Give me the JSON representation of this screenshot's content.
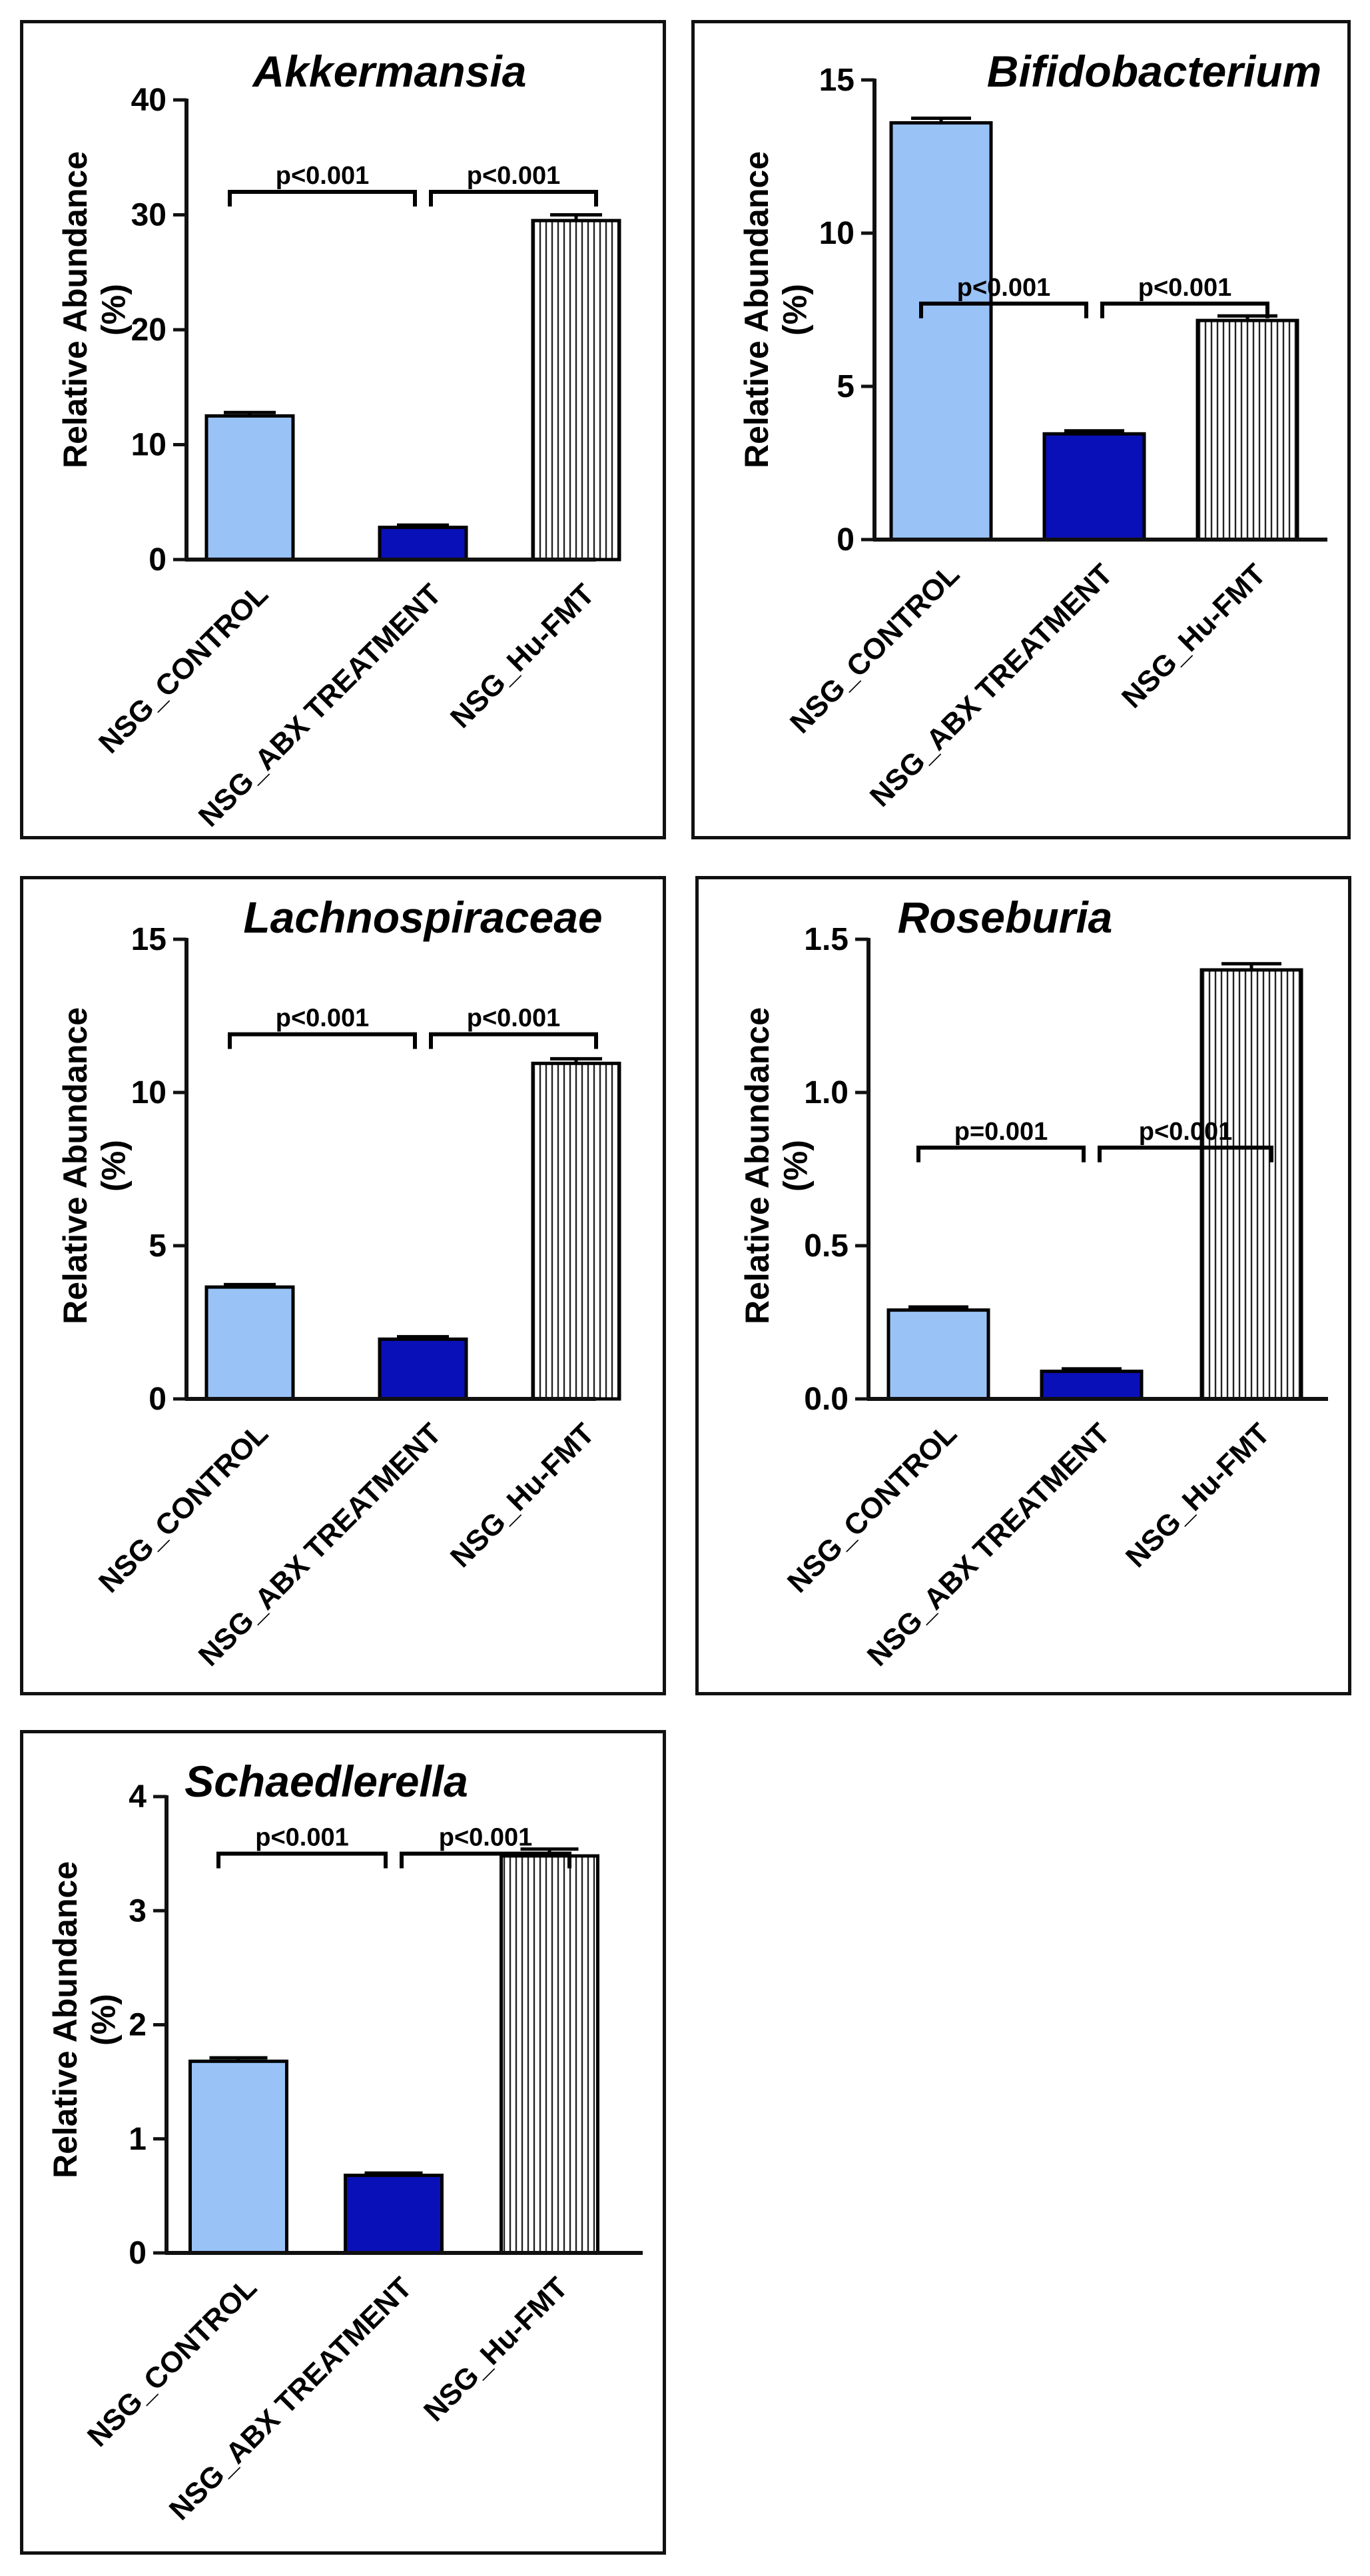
{
  "colors": {
    "control": "#99C2F7",
    "abx": "#0A10B8",
    "hufmt_bg": "#ffffff",
    "hufmt_stripe": "#222222",
    "axis": "#111111"
  },
  "chart_data": [
    {
      "type": "bar",
      "title": "Akkermansia",
      "ylabel": "Relative Abundance (%)",
      "ylabel_lines": [
        "Relative Abundance",
        "(%)"
      ],
      "categories": [
        "NSG_CONTROL",
        "NSG_ABX TREATMENT",
        "NSG_Hu-FMT"
      ],
      "values": [
        12.5,
        2.8,
        29.5
      ],
      "errors": [
        0.3,
        0.2,
        0.5
      ],
      "ylim": [
        0,
        40
      ],
      "yticks": [
        0,
        10,
        20,
        30,
        40
      ],
      "ytick_labels": [
        "0",
        "10",
        "20",
        "30",
        "40"
      ],
      "annotations": [
        {
          "text": "p<0.001",
          "from": 0,
          "to": 1,
          "y": 32
        },
        {
          "text": "p<0.001",
          "from": 1,
          "to": 2,
          "y": 32
        }
      ]
    },
    {
      "type": "bar",
      "title": "Bifidobacterium",
      "ylabel": "Relative Abundance (%)",
      "ylabel_lines": [
        "Relative Abundance",
        "(%)"
      ],
      "categories": [
        "NSG_CONTROL",
        "NSG_ABX TREATMENT",
        "NSG_Hu-FMT"
      ],
      "values": [
        13.6,
        3.45,
        7.15
      ],
      "errors": [
        0.15,
        0.1,
        0.15
      ],
      "ylim": [
        0,
        15
      ],
      "yticks": [
        0,
        5,
        10,
        15
      ],
      "ytick_labels": [
        "0",
        "5",
        "10",
        "15"
      ],
      "annotations": [
        {
          "text": "p<0.001",
          "from": 0,
          "to": 1,
          "y": 7.7
        },
        {
          "text": "p<0.001",
          "from": 1,
          "to": 2,
          "y": 7.7
        }
      ]
    },
    {
      "type": "bar",
      "title": "Lachnospiraceae",
      "ylabel": "Relative Abundance (%)",
      "ylabel_lines": [
        "Relative Abundance",
        "(%)"
      ],
      "categories": [
        "NSG_CONTROL",
        "NSG_ABX TREATMENT",
        "NSG_Hu-FMT"
      ],
      "values": [
        3.65,
        1.95,
        10.95
      ],
      "errors": [
        0.08,
        0.08,
        0.15
      ],
      "ylim": [
        0,
        15
      ],
      "yticks": [
        0,
        5,
        10,
        15
      ],
      "ytick_labels": [
        "0",
        "5",
        "10",
        "15"
      ],
      "annotations": [
        {
          "text": "p<0.001",
          "from": 0,
          "to": 1,
          "y": 11.9
        },
        {
          "text": "p<0.001",
          "from": 1,
          "to": 2,
          "y": 11.9
        }
      ]
    },
    {
      "type": "bar",
      "title": "Roseburia",
      "ylabel": "Relative Abundance (%)",
      "ylabel_lines": [
        "Relative Abundance",
        "(%)"
      ],
      "categories": [
        "NSG_CONTROL",
        "NSG_ABX TREATMENT",
        "NSG_Hu-FMT"
      ],
      "values": [
        0.29,
        0.09,
        1.4
      ],
      "errors": [
        0.01,
        0.008,
        0.02
      ],
      "ylim": [
        0,
        1.5
      ],
      "yticks": [
        0,
        0.5,
        1.0,
        1.5
      ],
      "ytick_labels": [
        "0.0",
        "0.5",
        "1.0",
        "1.5"
      ],
      "annotations": [
        {
          "text": "p=0.001",
          "from": 0,
          "to": 1,
          "y": 0.82
        },
        {
          "text": "p<0.001",
          "from": 1,
          "to": 2,
          "y": 0.82
        }
      ]
    },
    {
      "type": "bar",
      "title": "Schaedlerella",
      "ylabel": "Relative Abundance (%)",
      "ylabel_lines": [
        "Relative Abundance",
        "(%)"
      ],
      "categories": [
        "NSG_CONTROL",
        "NSG_ABX TREATMENT",
        "NSG_Hu-FMT"
      ],
      "values": [
        1.68,
        0.68,
        3.48
      ],
      "errors": [
        0.03,
        0.02,
        0.06
      ],
      "ylim": [
        0,
        4
      ],
      "yticks": [
        0,
        1,
        2,
        3,
        4
      ],
      "ytick_labels": [
        "0",
        "1",
        "2",
        "3",
        "4"
      ],
      "annotations": [
        {
          "text": "p<0.001",
          "from": 0,
          "to": 1,
          "y": 3.5
        },
        {
          "text": "p<0.001",
          "from": 1,
          "to": 2,
          "y": 3.5
        }
      ]
    }
  ]
}
